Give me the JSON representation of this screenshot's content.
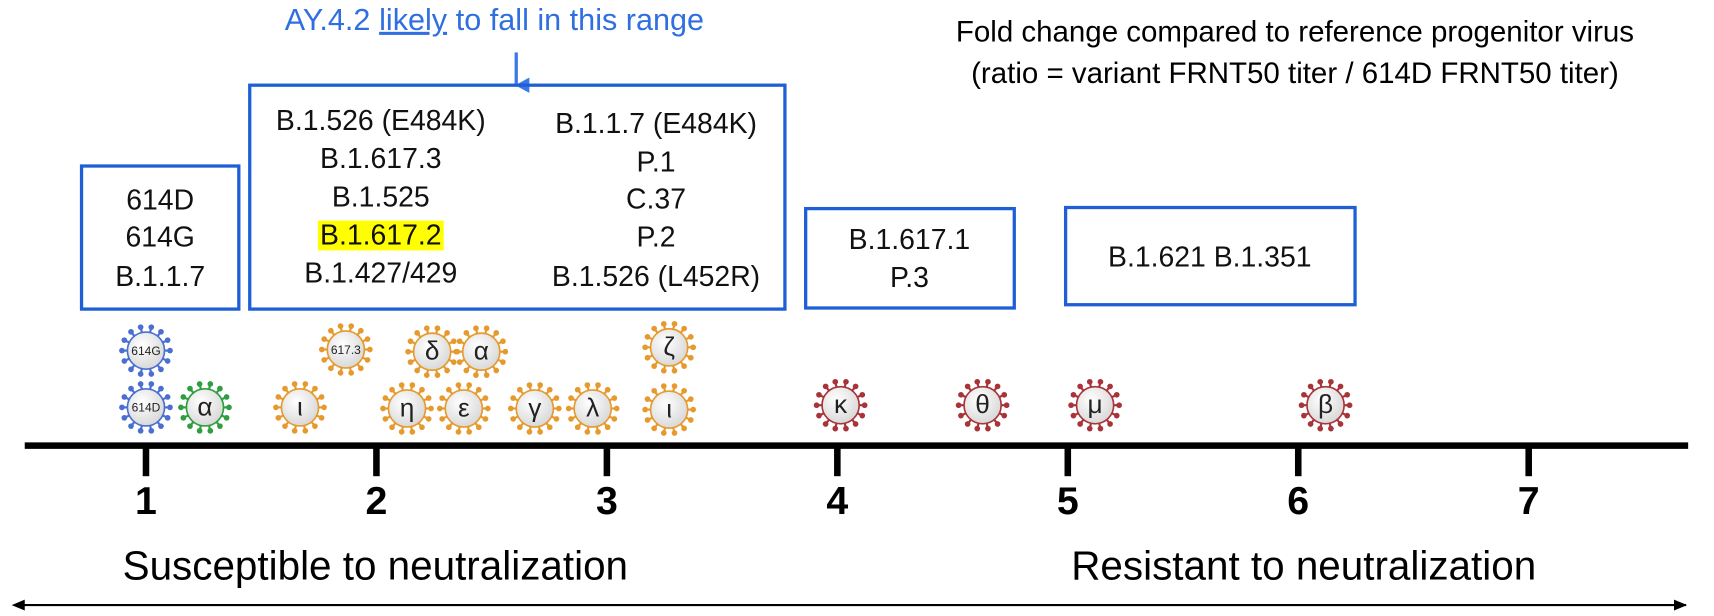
{
  "annotation": {
    "parts": [
      "AY.4.2",
      "likely",
      "to fall in this range"
    ]
  },
  "title": {
    "lines": [
      "Fold change compared to reference progenitor virus",
      "(ratio = variant FRNT50 titer / 614D FRNT50 titer)"
    ]
  },
  "groups": [
    {
      "columns": [
        [
          "614D",
          "614G",
          "B.1.1.7"
        ]
      ]
    },
    {
      "columns": [
        [
          "B.1.526 (E484K)",
          "B.1.617.3",
          "B.1.525",
          "B.1.617.2",
          "B.1.427/429"
        ],
        [
          "B.1.1.7 (E484K)",
          "P.1",
          "C.37",
          "P.2",
          "B.1.526 (L452R)"
        ]
      ]
    },
    {
      "columns": [
        [
          "B.1.617.1",
          "P.3"
        ]
      ]
    },
    {
      "columns": [
        [
          "B.1.621 B.1.351"
        ]
      ]
    }
  ],
  "viruses": [
    "614G",
    "614D",
    "α",
    "ι",
    "617.3",
    "δ",
    "α",
    "η",
    "ε",
    "γ",
    "λ",
    "ζ",
    "ι",
    "κ",
    "θ",
    "μ",
    "β"
  ],
  "axis": {
    "ticks": [
      1,
      2,
      3,
      4,
      5,
      6,
      7
    ]
  },
  "labels": {
    "left": "Susceptible to neutralization",
    "right": "Resistant to neutralization"
  }
}
